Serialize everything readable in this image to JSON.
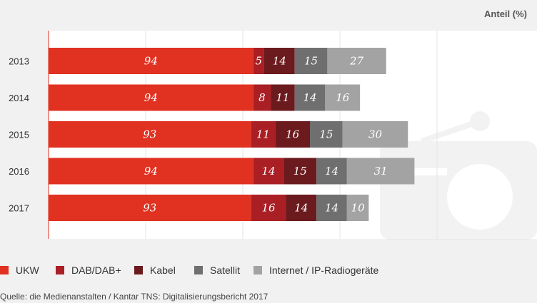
{
  "chart_data": {
    "type": "bar",
    "orientation": "horizontal",
    "stacked": true,
    "unit_label": "Anteil (%)",
    "categories": [
      "2013",
      "2014",
      "2015",
      "2016",
      "2017"
    ],
    "series": [
      {
        "name": "UKW",
        "color": "#e03121",
        "values": [
          94,
          94,
          93,
          94,
          93
        ]
      },
      {
        "name": "DAB/DAB+",
        "color": "#a91f24",
        "values": [
          5,
          8,
          11,
          14,
          16
        ]
      },
      {
        "name": "Kabel",
        "color": "#6b1a1e",
        "values": [
          14,
          11,
          16,
          15,
          14
        ]
      },
      {
        "name": "Satellit",
        "color": "#6f6f6f",
        "values": [
          15,
          14,
          15,
          14,
          14
        ]
      },
      {
        "name": "Internet / IP-Radiogeräte",
        "color": "#a3a3a3",
        "values": [
          27,
          16,
          30,
          31,
          10
        ]
      }
    ],
    "xlim": [
      0,
      230
    ],
    "grid": true,
    "legend_position": "bottom"
  },
  "source": "Quelle: die Medienanstalten / Kantar TNS: Digitalisierungsbericht 2017"
}
